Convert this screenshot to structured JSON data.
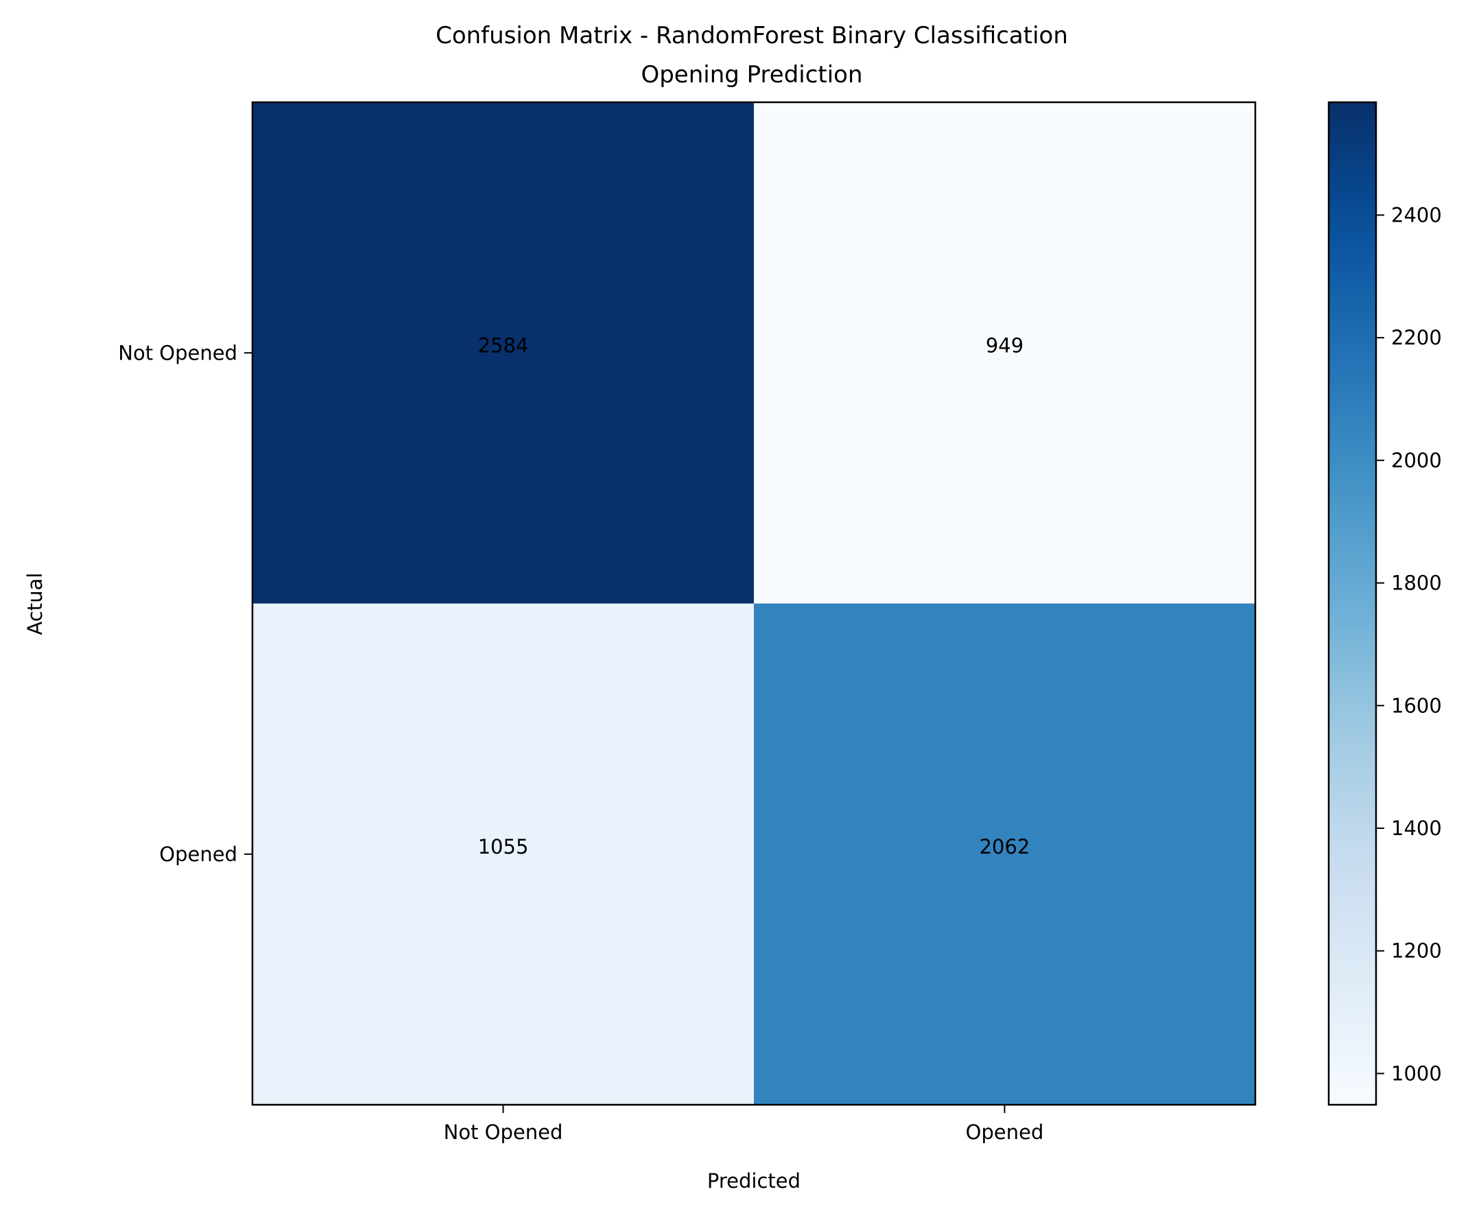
{
  "chart_data": {
    "type": "heatmap",
    "title": "Confusion Matrix - RandomForest Binary Classification\nOpening Prediction",
    "xlabel": "Predicted",
    "ylabel": "Actual",
    "x_categories": [
      "Not Opened",
      "Opened"
    ],
    "y_categories": [
      "Not Opened",
      "Opened"
    ],
    "values": [
      [
        2584,
        949
      ],
      [
        1055,
        2062
      ]
    ],
    "colormap": "Blues",
    "colorbar": {
      "range": [
        949,
        2584
      ],
      "ticks": [
        1000,
        1200,
        1400,
        1600,
        1800,
        2000,
        2200,
        2400
      ]
    },
    "grid": false,
    "legend": "colorbar-right"
  }
}
